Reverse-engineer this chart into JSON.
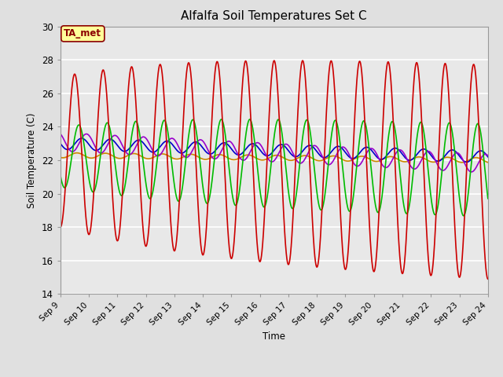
{
  "title": "Alfalfa Soil Temperatures Set C",
  "xlabel": "Time",
  "ylabel": "Soil Temperature (C)",
  "ylim": [
    14,
    30
  ],
  "xlim": [
    0,
    360
  ],
  "background_color": "#e0e0e0",
  "plot_bg_color": "#e8e8e8",
  "annotation_text": "TA_met",
  "annotation_bg": "#ffff99",
  "annotation_border": "#8b0000",
  "series": {
    "-2cm": {
      "color": "#cc0000",
      "lw": 1.2
    },
    "-4cm": {
      "color": "#cc8800",
      "lw": 1.2
    },
    "-8cm": {
      "color": "#00bb00",
      "lw": 1.2
    },
    "-16cm": {
      "color": "#0000cc",
      "lw": 1.2
    },
    "-32cm": {
      "color": "#9900cc",
      "lw": 1.2
    }
  },
  "xtick_labels": [
    "Sep 9",
    "Sep 10",
    "Sep 11",
    "Sep 12",
    "Sep 13",
    "Sep 14",
    "Sep 15",
    "Sep 16",
    "Sep 17",
    "Sep 18",
    "Sep 19",
    "Sep 20",
    "Sep 21",
    "Sep 22",
    "Sep 23",
    "Sep 24"
  ],
  "xtick_positions": [
    0,
    24,
    48,
    72,
    96,
    120,
    144,
    168,
    192,
    216,
    240,
    264,
    288,
    312,
    336,
    360
  ],
  "ytick_labels": [
    "14",
    "16",
    "18",
    "20",
    "22",
    "24",
    "26",
    "28",
    "30"
  ],
  "ytick_positions": [
    14,
    16,
    18,
    20,
    22,
    24,
    26,
    28,
    30
  ]
}
